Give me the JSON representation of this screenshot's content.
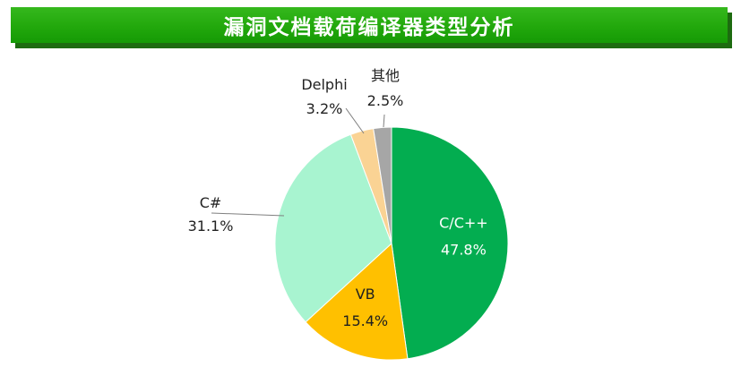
{
  "title": "漏洞文档载荷编译器类型分析",
  "chart_data": {
    "type": "pie",
    "title": "漏洞文档载荷编译器类型分析",
    "slices": [
      {
        "name": "C/C++",
        "value": 47.8,
        "label": "47.8%",
        "color": "#03ad50"
      },
      {
        "name": "VB",
        "value": 15.4,
        "label": "15.4%",
        "color": "#ffc000"
      },
      {
        "name": "C#",
        "value": 31.1,
        "label": "31.1%",
        "color": "#a8f4d0"
      },
      {
        "name": "Delphi",
        "value": 3.2,
        "label": "3.2%",
        "color": "#fad394"
      },
      {
        "name": "其他",
        "value": 2.5,
        "label": "2.5%",
        "color": "#a6a6a6"
      }
    ]
  }
}
